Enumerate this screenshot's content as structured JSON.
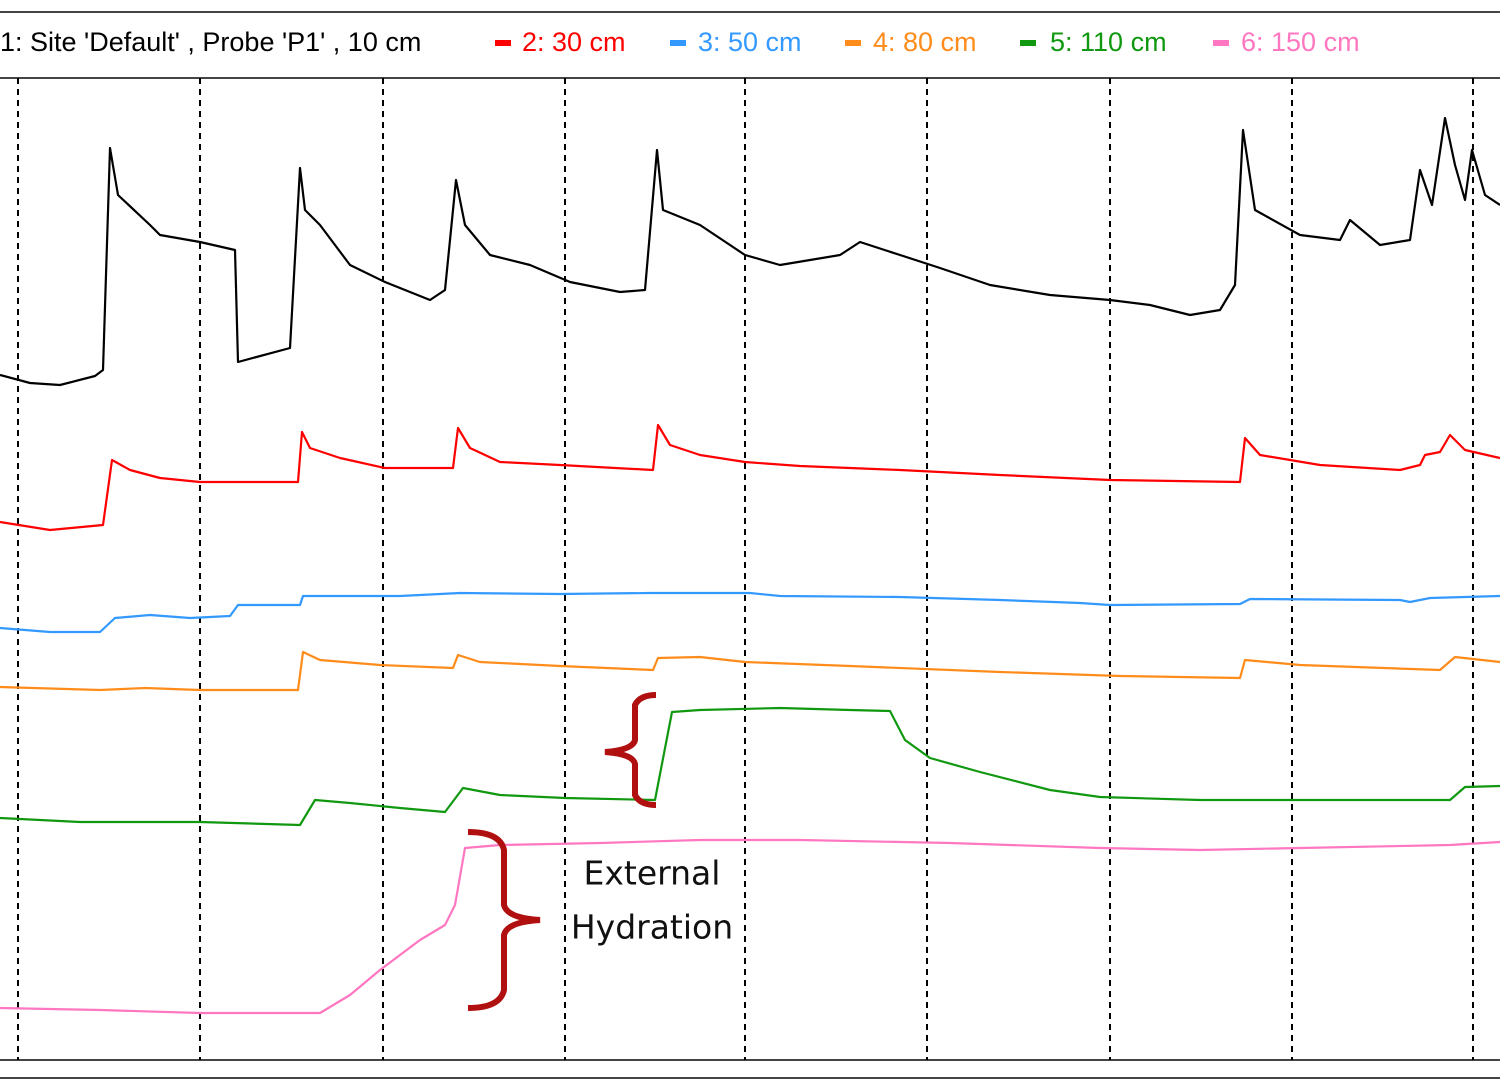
{
  "chart_data": {
    "type": "line",
    "xlim": [
      0,
      150
    ],
    "ylim": [
      0,
      98
    ],
    "xticks": [
      1.8,
      20,
      38.3,
      56.5,
      74.5,
      92.7,
      111,
      129.2,
      147.3
    ],
    "grid": true,
    "series": [
      {
        "name": "1: Site 'Default' , Probe 'P1' , 10 cm",
        "color": "#000000",
        "x": [
          0,
          3,
          6,
          9.5,
          10.3,
          11,
          11.8,
          15,
          16,
          20,
          23.5,
          23.8,
          29,
          30,
          30.5,
          32,
          35,
          38.5,
          43,
          44.5,
          45.6,
          46.5,
          49,
          53,
          57,
          62,
          64.5,
          65.7,
          66.3,
          70,
          74.5,
          78,
          84,
          86,
          90,
          94,
          99,
          105,
          111,
          115,
          119,
          122,
          123.5,
          124.3,
          125.5,
          130,
          134,
          135,
          138,
          141,
          142,
          143.2,
          144.5,
          145.5,
          146.5,
          147.2,
          148.5,
          150
        ],
        "values": [
          68.5,
          67.7,
          67.5,
          68.4,
          69,
          91.2,
          86.5,
          83.5,
          82.5,
          81.8,
          81,
          69.8,
          71.2,
          89.2,
          85,
          83.5,
          79.5,
          77.8,
          76,
          77,
          88,
          83.5,
          80.5,
          79.5,
          77.8,
          76.8,
          77,
          91,
          85,
          83.5,
          80.5,
          79.5,
          80.5,
          81.8,
          80.5,
          79.2,
          77.5,
          76.5,
          76,
          75.5,
          74.5,
          75,
          77.5,
          93,
          85,
          82.5,
          82,
          84,
          81.5,
          82,
          89,
          85.5,
          94.2,
          89.5,
          86,
          91,
          86.5,
          85.5
        ]
      },
      {
        "name": "2: 30 cm",
        "color": "#ff0000",
        "x": [
          0,
          5,
          10.3,
          11.2,
          13,
          16,
          20,
          29.8,
          30.2,
          31,
          34,
          38.5,
          45.3,
          45.8,
          47,
          50,
          56,
          65.3,
          65.8,
          67,
          70,
          74.5,
          80,
          90,
          100,
          111,
          124,
          124.5,
          126,
          132,
          140,
          142,
          142.5,
          144,
          145,
          146.5,
          150
        ],
        "values": [
          53.8,
          53,
          53.5,
          60,
          59,
          58.2,
          57.8,
          57.8,
          62.8,
          61.2,
          60.2,
          59.2,
          59.2,
          63.2,
          61.2,
          59.8,
          59.5,
          59,
          63.5,
          61.5,
          60.5,
          59.8,
          59.4,
          59,
          58.5,
          58,
          57.8,
          62.2,
          60.5,
          59.5,
          59,
          59.5,
          60.5,
          60.8,
          62.5,
          61,
          60.2
        ]
      },
      {
        "name": "3: 50 cm",
        "color": "#3399ff",
        "x": [
          0,
          5,
          10,
          11.5,
          15,
          19,
          23,
          23.8,
          30,
          30.3,
          40,
          46,
          56,
          65,
          75,
          78,
          90,
          100,
          108,
          111,
          124,
          125,
          140,
          141,
          143,
          150
        ],
        "values": [
          43.2,
          42.8,
          42.8,
          44.2,
          44.5,
          44.2,
          44.4,
          45.5,
          45.5,
          46.4,
          46.4,
          46.7,
          46.6,
          46.7,
          46.7,
          46.4,
          46.3,
          46,
          45.7,
          45.5,
          45.6,
          46.1,
          46,
          45.8,
          46.2,
          46.4
        ]
      },
      {
        "name": "4: 80 cm",
        "color": "#ff8c1a",
        "x": [
          0,
          10,
          14.5,
          20,
          29.8,
          30.3,
          32,
          38,
          45.3,
          45.8,
          48,
          56,
          65.3,
          65.8,
          70,
          74.5,
          85,
          100,
          112,
          124,
          124.5,
          130,
          144,
          145.5,
          150
        ],
        "values": [
          37.3,
          37,
          37.2,
          37,
          37,
          40.8,
          40,
          39.5,
          39.2,
          40.5,
          39.8,
          39.4,
          39,
          40.2,
          40.3,
          39.8,
          39.4,
          38.8,
          38.4,
          38.2,
          40,
          39.5,
          39,
          40.3,
          39.8
        ]
      },
      {
        "name": "5: 110 cm",
        "color": "#109810",
        "x": [
          0,
          4,
          8,
          20,
          30,
          31.5,
          35,
          40,
          44.5,
          46.3,
          50,
          56.5,
          65.5,
          67.2,
          70,
          78,
          85,
          89,
          90.5,
          93,
          98,
          105,
          110,
          120,
          129,
          145,
          146.5,
          150
        ],
        "values": [
          24.2,
          24,
          23.8,
          23.8,
          23.5,
          26,
          25.7,
          25.2,
          24.8,
          27.2,
          26.5,
          26.2,
          26,
          34.8,
          35,
          35.2,
          35,
          34.9,
          32,
          30.2,
          28.8,
          27,
          26.3,
          26,
          26,
          26,
          27.3,
          27.4
        ]
      },
      {
        "name": "6: 150 cm",
        "color": "#ff77c0",
        "x": [
          0,
          10,
          20,
          32,
          35,
          38,
          42,
          44.5,
          45.5,
          46.5,
          50,
          60,
          70,
          80,
          95,
          110,
          120,
          130,
          145,
          150
        ],
        "values": [
          5.2,
          5,
          4.7,
          4.7,
          6.5,
          9,
          12,
          13.5,
          15.5,
          21.2,
          21.5,
          21.7,
          22,
          22,
          21.7,
          21.2,
          21,
          21.2,
          21.5,
          21.8
        ]
      }
    ],
    "annotations": [
      "External",
      "Hydration"
    ]
  }
}
